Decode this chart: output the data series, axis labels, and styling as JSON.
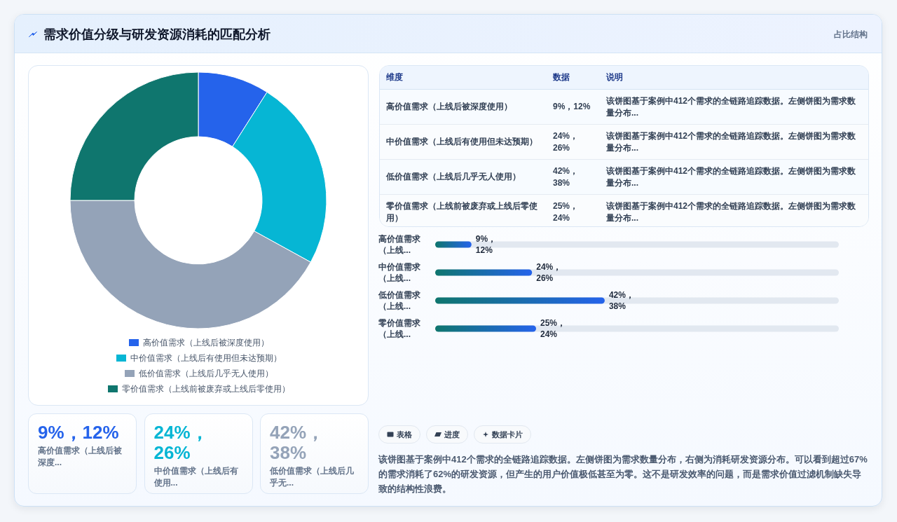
{
  "chart_data": [
    {
      "type": "other",
      "title": "需求价值分级与研发资源消耗的匹配分析",
      "subtitle": "占比结构"
    },
    {
      "type": "donut",
      "categories": [
        "高价值需求（上线后被深度使用）",
        "中价值需求（上线后有使用但未达预期）",
        "低价值需求（上线后几乎无人使用）",
        "零价值需求（上线前被废弃或上线后零使用）"
      ],
      "values": [
        9,
        24,
        42,
        25
      ],
      "colors": [
        "#2563eb",
        "#06b6d4",
        "#94a3b8",
        "#0f766e"
      ],
      "legend": "bottom"
    },
    {
      "type": "other",
      "ylabel": "维度",
      "categories": [
        "数据",
        "说明"
      ],
      "y_categories": [
        "高价值需求（上线后被深度使用）",
        "中价值需求（上线后有使用但未达预期）",
        "低价值需求（上线后几乎无人使用）",
        "零价值需求（上线前被废弃或上线后零使用）"
      ],
      "cell_labels": [
        [
          "9%，12%",
          "该饼图基于案例中412个需求的全链路追踪数据。左侧饼图为需求数量分布..."
        ],
        [
          "24%，26%",
          "该饼图基于案例中412个需求的全链路追踪数据。左侧饼图为需求数量分布..."
        ],
        [
          "42%，38%",
          "该饼图基于案例中412个需求的全链路追踪数据。左侧饼图为需求数量分布..."
        ],
        [
          "25%，24%",
          "该饼图基于案例中412个需求的全链路追踪数据。左侧饼图为需求数量分布..."
        ]
      ]
    },
    {
      "type": "bar",
      "orientation": "horizontal",
      "categories": [
        "高价值需求（上线...",
        "中价值需求（上线...",
        "低价值需求（上线...",
        "零价值需求（上线..."
      ],
      "values": [
        9,
        24,
        42,
        25
      ],
      "value_labels": [
        "9%，12%",
        "24%，26%",
        "42%，38%",
        "25%，24%"
      ],
      "color": "#2563eb",
      "tick_labels": "y"
    },
    {
      "type": "other",
      "categories": [
        "高价值需求（上线后被深度...",
        "中价值需求（上线后有使用...",
        "低价值需求（上线后几乎无..."
      ],
      "value_labels": [
        "9%，12%",
        "24%，26%",
        "42%，38%"
      ]
    },
    {
      "type": "other",
      "categories": [
        "表格",
        "进度",
        "数据卡片"
      ],
      "annotations": [
        "该饼图基于案例中412个需求的全链路追踪数据。左侧饼图为需求数量分布，右侧为消耗研发资源分布。可以看到超过67%的需求消耗了62%的研发资源，但产生的用户价值极低甚至为零。这不是研发效率的问题，而是需求价值过滤机制缺失导致的结构性浪费。"
      ]
    }
  ]
}
